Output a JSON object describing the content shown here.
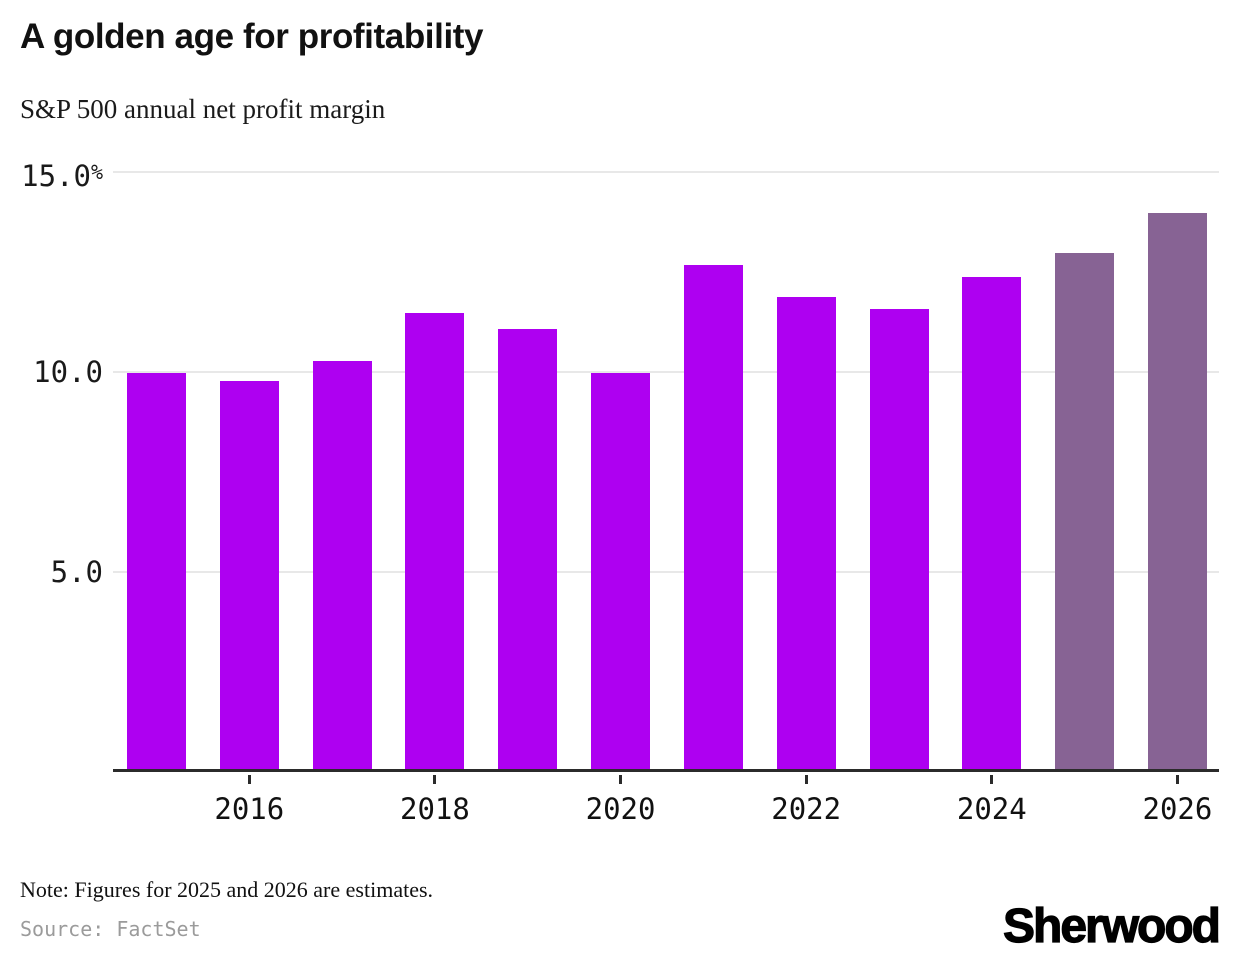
{
  "header": {
    "title": "A golden age for profitability",
    "subtitle": "S&P 500 annual net profit margin"
  },
  "chart_data": {
    "type": "bar",
    "title": "A golden age for profitability",
    "subtitle": "S&P 500 annual net profit margin",
    "categories": [
      "2015",
      "2016",
      "2017",
      "2018",
      "2019",
      "2020",
      "2021",
      "2022",
      "2023",
      "2024",
      "2025",
      "2026"
    ],
    "values": [
      9.9,
      9.7,
      10.2,
      11.4,
      11.0,
      9.9,
      12.6,
      11.8,
      11.5,
      12.3,
      12.9,
      13.9
    ],
    "estimate_flags": [
      false,
      false,
      false,
      false,
      false,
      false,
      false,
      false,
      false,
      false,
      true,
      true
    ],
    "y_axis": {
      "ticks": [
        {
          "value": 15,
          "label": "15.0",
          "suffix": "%"
        },
        {
          "value": 10,
          "label": "10.0",
          "suffix": ""
        },
        {
          "value": 5,
          "label": "5.0",
          "suffix": ""
        }
      ]
    },
    "x_tick_labels": [
      "2016",
      "2018",
      "2020",
      "2022",
      "2024",
      "2026"
    ],
    "ylim": [
      0,
      15
    ],
    "grid": "horizontal",
    "legend": "none",
    "colors": {
      "actual": "#AE00F1",
      "estimate": "#876394",
      "gridline": "#e8e8e8",
      "axis": "#2b2b2b"
    }
  },
  "footer": {
    "note": "Note: Figures for 2025 and 2026 are estimates.",
    "source": "Source: FactSet",
    "brand": "Sherwood"
  }
}
